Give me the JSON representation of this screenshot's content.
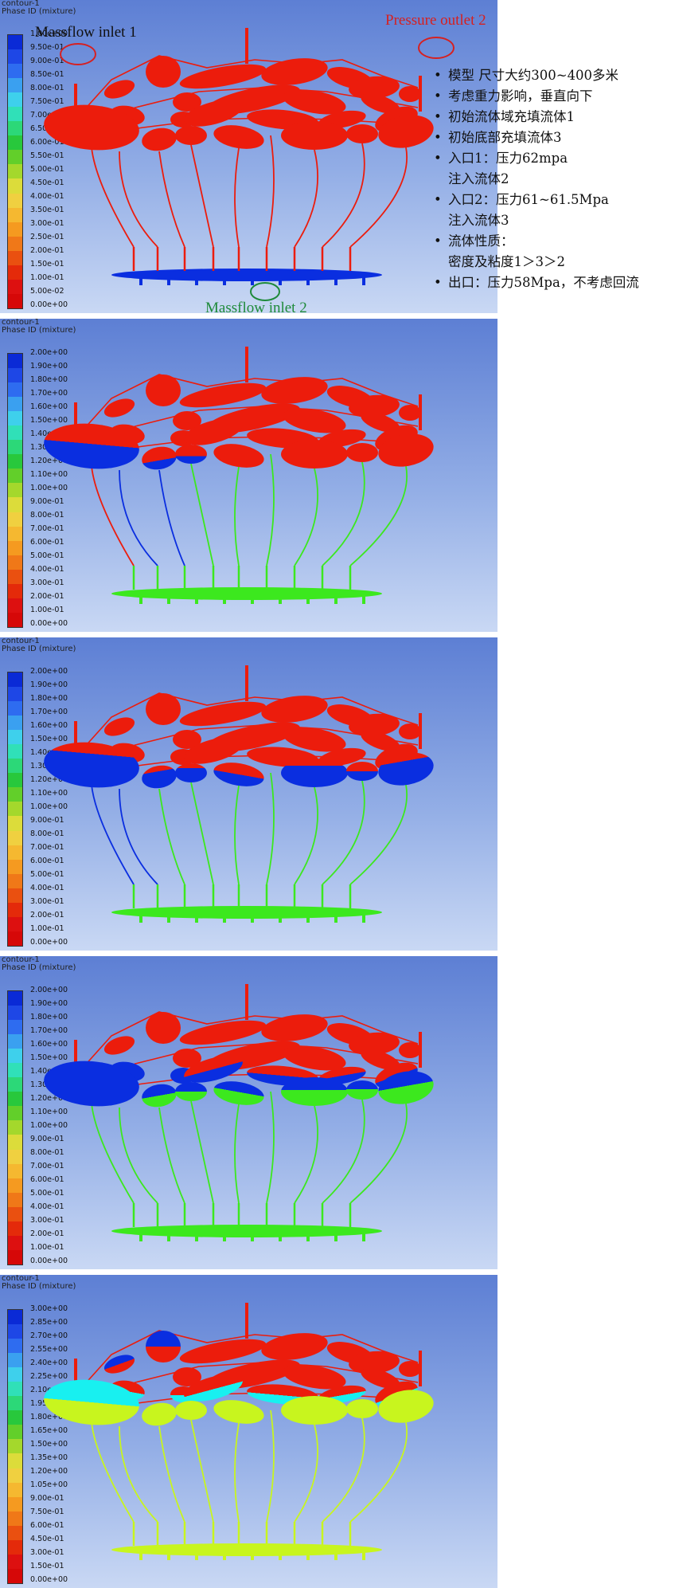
{
  "panels": [
    {
      "header": [
        "contour-1",
        "Phase ID (mixture)"
      ],
      "labels": [
        "1.00e+00",
        "9.50e-01",
        "9.00e-01",
        "8.50e-01",
        "8.00e-01",
        "7.50e-01",
        "7.00e-01",
        "6.50e-01",
        "6.00e-01",
        "5.50e-01",
        "5.00e-01",
        "4.50e-01",
        "4.00e-01",
        "3.50e-01",
        "3.00e-01",
        "2.50e-01",
        "2.00e-01",
        "1.50e-01",
        "1.00e-01",
        "5.00e-02",
        "0.00e+00"
      ],
      "colors": [
        "#0a2ad6",
        "#1e47e6",
        "#2e6cf0",
        "#3aa0f0",
        "#3ed0ec",
        "#30e0b8",
        "#2cd878",
        "#28c83c",
        "#62cf2a",
        "#a4d82c",
        "#dcdc3a",
        "#f0d040",
        "#f5b830",
        "#f59a20",
        "#f07818",
        "#ea5010",
        "#e42a0a",
        "#dd1010",
        "#d60808"
      ],
      "state": 0
    },
    {
      "header": [
        "contour-1",
        "Phase ID (mixture)"
      ],
      "labels": [
        "2.00e+00",
        "1.90e+00",
        "1.80e+00",
        "1.70e+00",
        "1.60e+00",
        "1.50e+00",
        "1.40e+00",
        "1.30e+00",
        "1.20e+00",
        "1.10e+00",
        "1.00e+00",
        "9.00e-01",
        "8.00e-01",
        "7.00e-01",
        "6.00e-01",
        "5.00e-01",
        "4.00e-01",
        "3.00e-01",
        "2.00e-01",
        "1.00e-01",
        "0.00e+00"
      ],
      "colors": [
        "#0a2ad6",
        "#1e47e6",
        "#2e6cf0",
        "#3aa0f0",
        "#3ed0ec",
        "#30e0b8",
        "#2cd878",
        "#28c83c",
        "#62cf2a",
        "#a4d82c",
        "#dcdc3a",
        "#f0d040",
        "#f5b830",
        "#f59a20",
        "#f07818",
        "#ea5010",
        "#e42a0a",
        "#dd1010",
        "#d60808"
      ],
      "state": 1
    },
    {
      "header": [
        "contour-1",
        "Phase ID (mixture)"
      ],
      "labels": [
        "2.00e+00",
        "1.90e+00",
        "1.80e+00",
        "1.70e+00",
        "1.60e+00",
        "1.50e+00",
        "1.40e+00",
        "1.30e+00",
        "1.20e+00",
        "1.10e+00",
        "1.00e+00",
        "9.00e-01",
        "8.00e-01",
        "7.00e-01",
        "6.00e-01",
        "5.00e-01",
        "4.00e-01",
        "3.00e-01",
        "2.00e-01",
        "1.00e-01",
        "0.00e+00"
      ],
      "colors": [
        "#0a2ad6",
        "#1e47e6",
        "#2e6cf0",
        "#3aa0f0",
        "#3ed0ec",
        "#30e0b8",
        "#2cd878",
        "#28c83c",
        "#62cf2a",
        "#a4d82c",
        "#dcdc3a",
        "#f0d040",
        "#f5b830",
        "#f59a20",
        "#f07818",
        "#ea5010",
        "#e42a0a",
        "#dd1010",
        "#d60808"
      ],
      "state": 2
    },
    {
      "header": [
        "contour-1",
        "Phase ID (mixture)"
      ],
      "labels": [
        "2.00e+00",
        "1.90e+00",
        "1.80e+00",
        "1.70e+00",
        "1.60e+00",
        "1.50e+00",
        "1.40e+00",
        "1.30e+00",
        "1.20e+00",
        "1.10e+00",
        "1.00e+00",
        "9.00e-01",
        "8.00e-01",
        "7.00e-01",
        "6.00e-01",
        "5.00e-01",
        "4.00e-01",
        "3.00e-01",
        "2.00e-01",
        "1.00e-01",
        "0.00e+00"
      ],
      "colors": [
        "#0a2ad6",
        "#1e47e6",
        "#2e6cf0",
        "#3aa0f0",
        "#3ed0ec",
        "#30e0b8",
        "#2cd878",
        "#28c83c",
        "#62cf2a",
        "#a4d82c",
        "#dcdc3a",
        "#f0d040",
        "#f5b830",
        "#f59a20",
        "#f07818",
        "#ea5010",
        "#e42a0a",
        "#dd1010",
        "#d60808"
      ],
      "state": 3
    },
    {
      "header": [
        "contour-1",
        "Phase ID (mixture)"
      ],
      "labels": [
        "3.00e+00",
        "2.85e+00",
        "2.70e+00",
        "2.55e+00",
        "2.40e+00",
        "2.25e+00",
        "2.10e+00",
        "1.95e+00",
        "1.80e+00",
        "1.65e+00",
        "1.50e+00",
        "1.35e+00",
        "1.20e+00",
        "1.05e+00",
        "9.00e-01",
        "7.50e-01",
        "6.00e-01",
        "4.50e-01",
        "3.00e-01",
        "1.50e-01",
        "0.00e+00"
      ],
      "colors": [
        "#0a2ad6",
        "#1e47e6",
        "#2e6cf0",
        "#3aa0f0",
        "#3ed0ec",
        "#30e0b8",
        "#2cd878",
        "#28c83c",
        "#62cf2a",
        "#a4d82c",
        "#dcdc3a",
        "#f0d040",
        "#f5b830",
        "#f59a20",
        "#f07818",
        "#ea5010",
        "#e42a0a",
        "#dd1010",
        "#d60808"
      ],
      "state": 4
    }
  ],
  "annotations": {
    "inlet1": "Massflow inlet 1",
    "outlet2": "Pressure outlet 2",
    "inlet2": "Massflow inlet 2",
    "inlet1_color": "#111111",
    "outlet2_color": "#d62020",
    "inlet2_color": "#1e8a3a"
  },
  "notes": [
    {
      "text": "模型 尺寸大约300~400多米",
      "sub": ""
    },
    {
      "text": "考虑重力影响，垂直向下",
      "sub": ""
    },
    {
      "text": "初始流体域充填流体1",
      "sub": ""
    },
    {
      "text": "初始底部充填流体3",
      "sub": ""
    },
    {
      "text": "入口1：压力62mpa",
      "sub": "注入流体2"
    },
    {
      "text": "入口2：压力61~61.5Mpa",
      "sub": "注入流体3"
    },
    {
      "text": "流体性质：",
      "sub": "密度及粘度1＞3＞2"
    },
    {
      "text": "出口：压力58Mpa，不考虑回流",
      "sub": ""
    }
  ],
  "phase_colors": {
    "red": "#ec1c0c",
    "blue": "#0a2ee0",
    "green": "#3ce81e",
    "cyan": "#18f0f0",
    "yellow": "#c8f51e"
  }
}
